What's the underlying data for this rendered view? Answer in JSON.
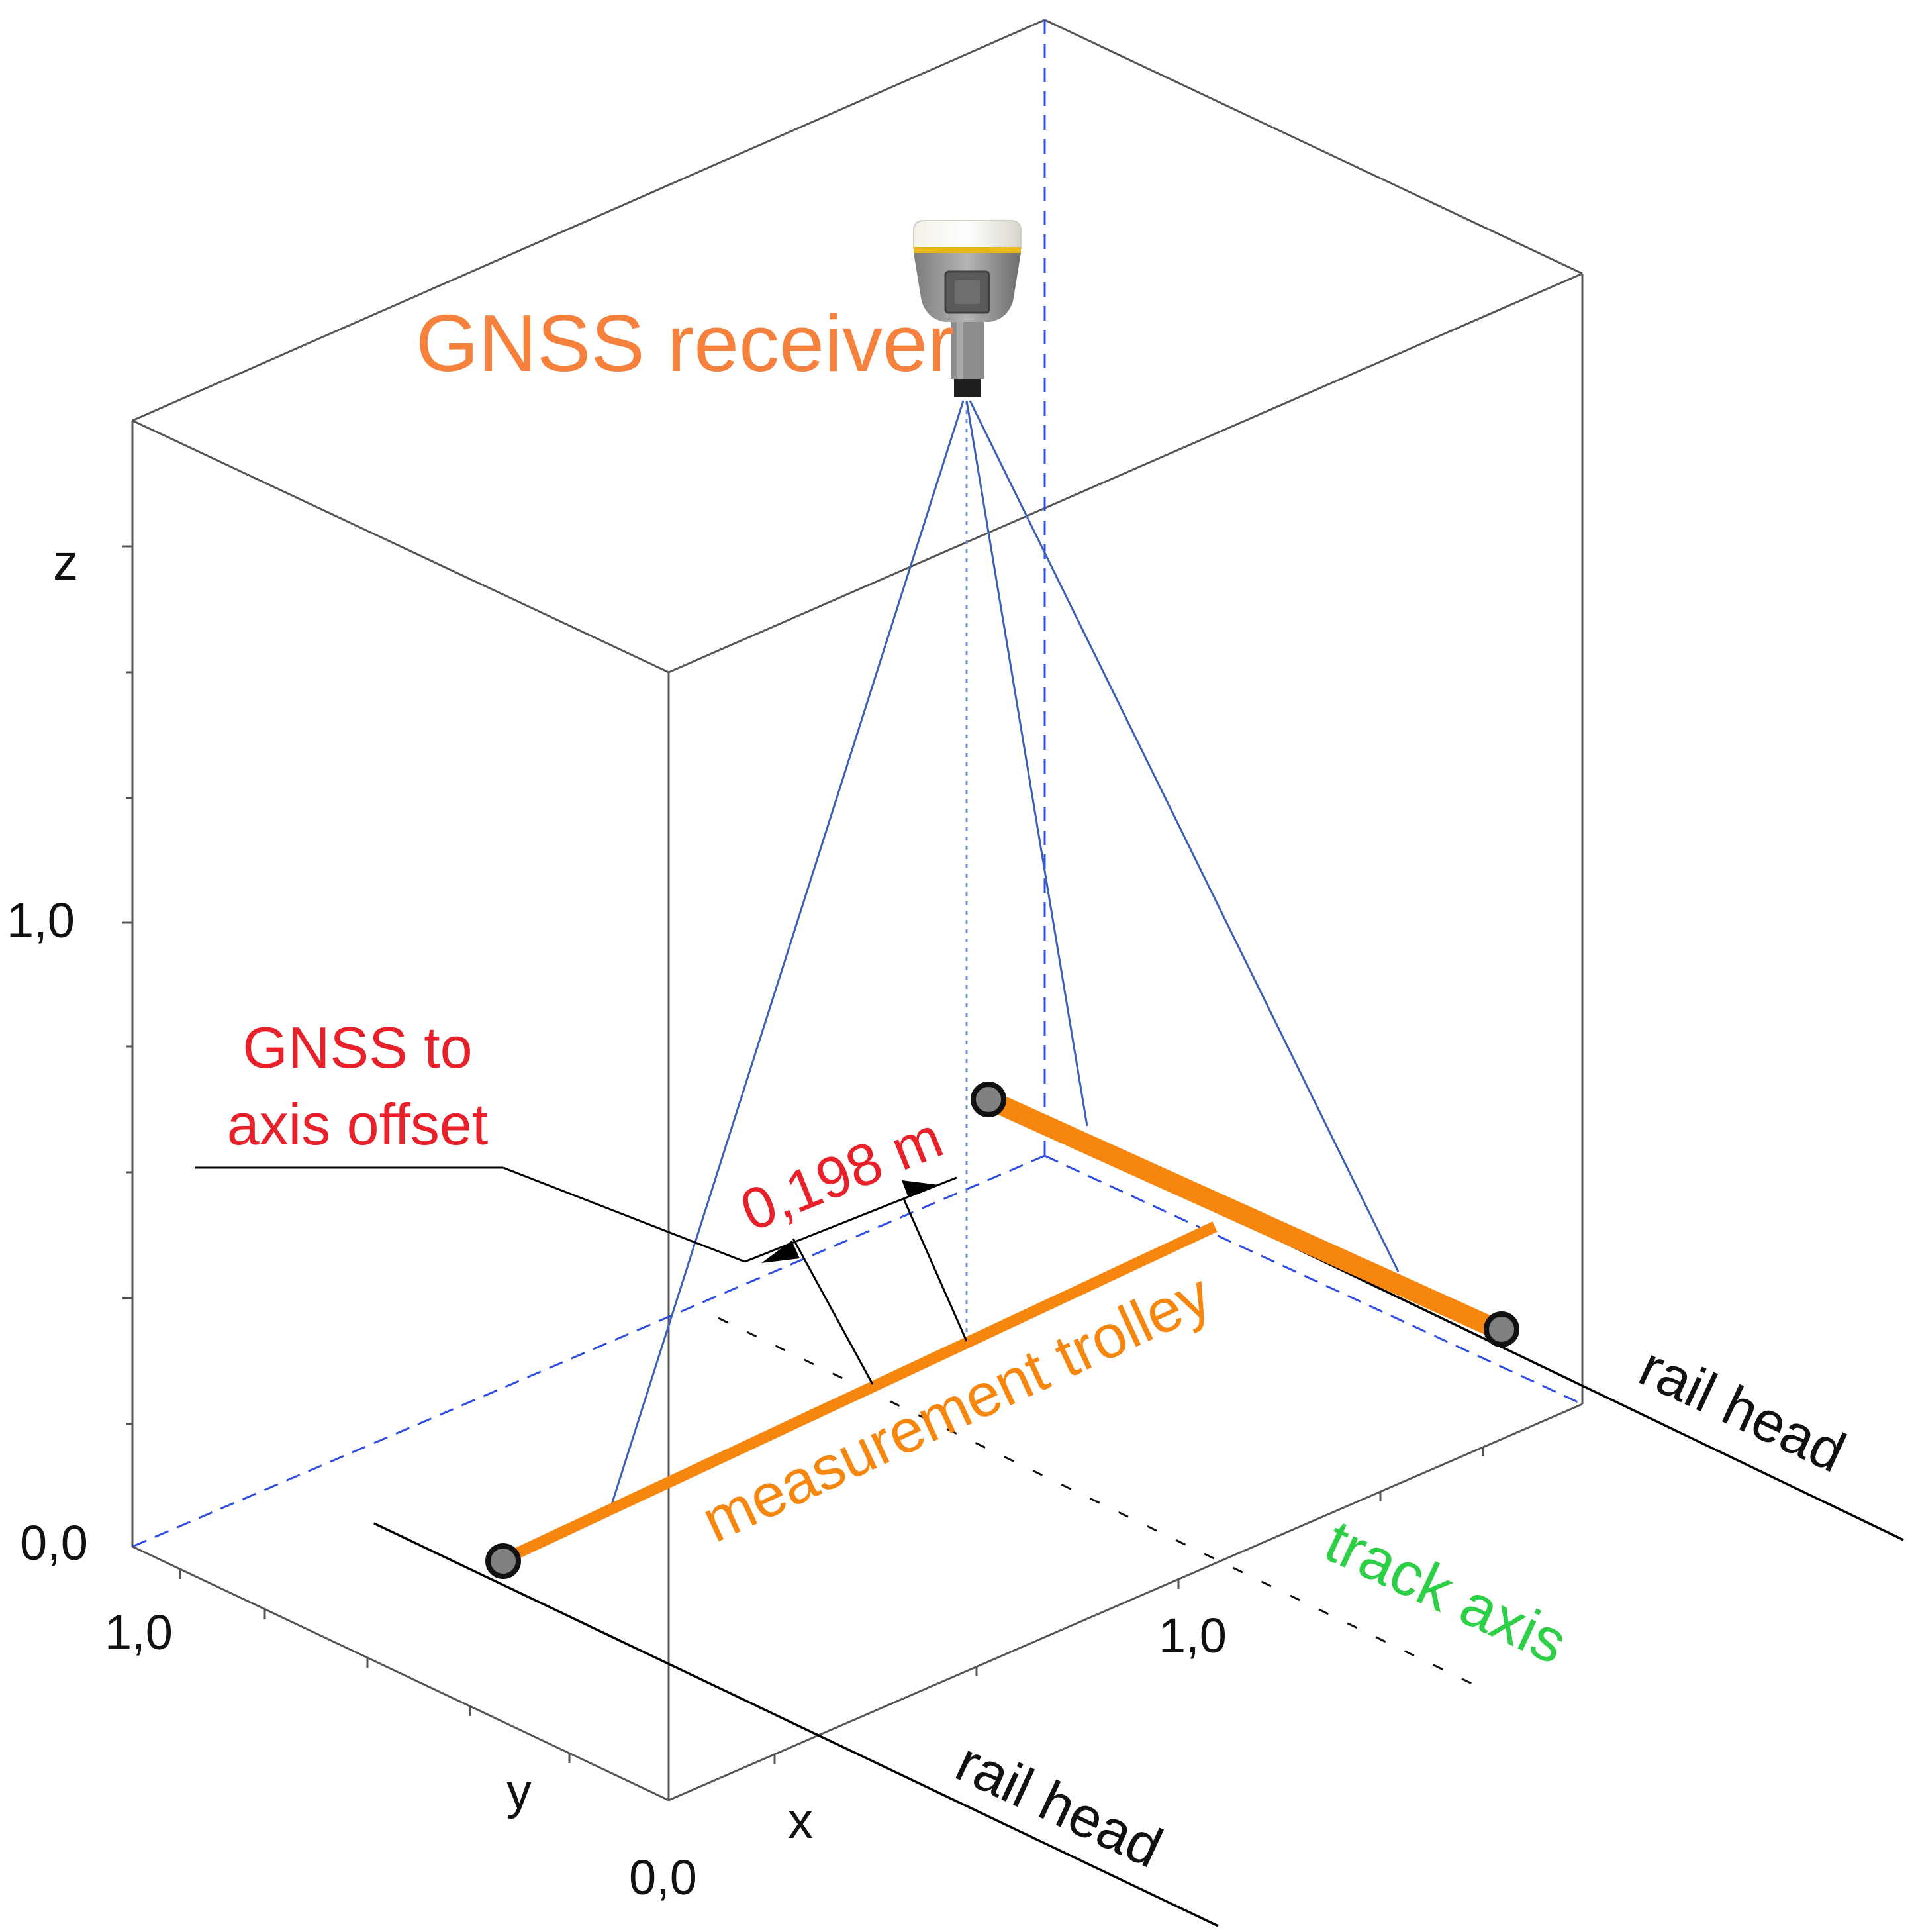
{
  "labels": {
    "gnss_receiver": "GNSS receiver",
    "offset_title_line1": "GNSS to",
    "offset_title_line2": "axis offset",
    "offset_value": "0,198 m",
    "measurement_trolley": "measurement trolley",
    "track_axis": "track axis",
    "rail_head_right": "rail head",
    "rail_head_bottom": "rail head"
  },
  "axes": {
    "z": {
      "label": "z",
      "ticks": [
        "0,0",
        "1,0"
      ]
    },
    "y": {
      "label": "y",
      "ticks": [
        "1,0"
      ]
    },
    "x": {
      "label": "x",
      "ticks": [
        "0,0",
        "1,0"
      ]
    }
  },
  "colors": {
    "gnss_label": "#f5813d",
    "offset_label": "#e8202a",
    "trolley": "#f7860f",
    "track_axis": "#2ccf45",
    "sight_lines": "#3a5fb5",
    "dashed_guides": "#2f4de0",
    "box_edges": "#555555",
    "rail": "#000000",
    "joint": "#808080"
  },
  "icons": {
    "receiver": "gnss-antenna-icon",
    "joints": "trolley-wheel-icon"
  }
}
